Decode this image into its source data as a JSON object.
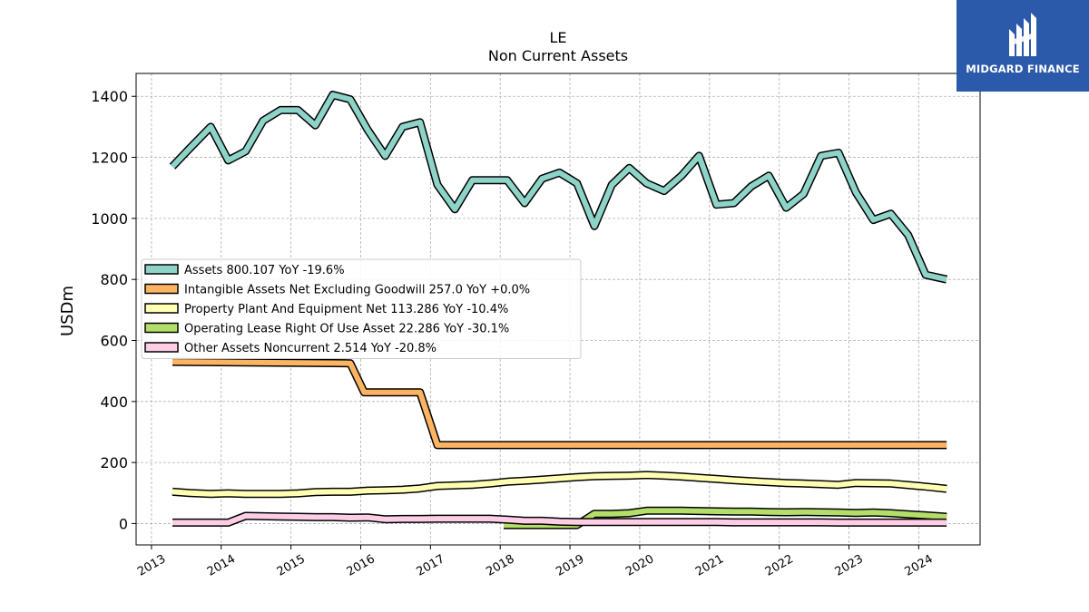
{
  "brand": {
    "name": "MIDGARD FINANCE",
    "bg_color": "#2b5aab"
  },
  "chart_data": {
    "type": "line",
    "title": "LE",
    "subtitle": "Non Current  Assets",
    "ylabel": "USDm",
    "xlabel": "",
    "ylim": [
      -70,
      1475
    ],
    "xlim": [
      2012.78,
      2024.88
    ],
    "yticks": [
      0,
      200,
      400,
      600,
      800,
      1000,
      1200,
      1400
    ],
    "xticks": [
      2013,
      2014,
      2015,
      2016,
      2017,
      2018,
      2019,
      2020,
      2021,
      2022,
      2023,
      2024
    ],
    "grid": true,
    "legend_position": "center-left",
    "series": [
      {
        "name": "Assets",
        "legend_label": "Assets  800.107 YoY -19.6%",
        "color": "#8dd3c7",
        "x": [
          2013.3,
          2013.55,
          2013.85,
          2014.1,
          2014.35,
          2014.6,
          2014.85,
          2015.1,
          2015.35,
          2015.6,
          2015.85,
          2016.1,
          2016.35,
          2016.6,
          2016.85,
          2017.1,
          2017.35,
          2017.6,
          2017.85,
          2018.1,
          2018.35,
          2018.6,
          2018.85,
          2019.1,
          2019.35,
          2019.6,
          2019.85,
          2020.1,
          2020.35,
          2020.6,
          2020.85,
          2021.1,
          2021.35,
          2021.6,
          2021.85,
          2022.1,
          2022.35,
          2022.6,
          2022.85,
          2023.1,
          2023.35,
          2023.6,
          2023.85,
          2024.1,
          2024.4
        ],
        "values": [
          1170,
          1230,
          1300,
          1190,
          1220,
          1320,
          1355,
          1355,
          1305,
          1405,
          1390,
          1290,
          1205,
          1300,
          1315,
          1110,
          1030,
          1125,
          1125,
          1125,
          1050,
          1130,
          1150,
          1115,
          975,
          1110,
          1165,
          1115,
          1090,
          1140,
          1205,
          1045,
          1050,
          1105,
          1140,
          1035,
          1080,
          1205,
          1215,
          1085,
          995,
          1015,
          945,
          815,
          800
        ]
      },
      {
        "name": "Intangible Assets Net Excluding Goodwill",
        "legend_label": "Intangible Assets Net Excluding Goodwill  257.0 YoY +0.0%",
        "color": "#fdb462",
        "x": [
          2013.3,
          2015.85,
          2016.05,
          2016.85,
          2017.1,
          2024.4
        ],
        "values": [
          530,
          525,
          430,
          430,
          257,
          257
        ]
      },
      {
        "name": "Property Plant And Equipment Net",
        "legend_label": "Property Plant And Equipment Net  113.286 YoY -10.4%",
        "color": "#ffffb3",
        "x": [
          2013.3,
          2013.55,
          2013.85,
          2014.1,
          2014.35,
          2014.6,
          2014.85,
          2015.1,
          2015.35,
          2015.6,
          2015.85,
          2016.1,
          2016.35,
          2016.6,
          2016.85,
          2017.1,
          2017.35,
          2017.6,
          2017.85,
          2018.1,
          2018.35,
          2018.6,
          2018.85,
          2019.1,
          2019.35,
          2019.6,
          2019.85,
          2020.1,
          2020.35,
          2020.6,
          2020.85,
          2021.1,
          2021.35,
          2021.6,
          2021.85,
          2022.1,
          2022.35,
          2022.6,
          2022.85,
          2023.1,
          2023.35,
          2023.6,
          2023.85,
          2024.1,
          2024.4
        ],
        "values": [
          104,
          100,
          97,
          99,
          97,
          97,
          97,
          99,
          103,
          104,
          104,
          108,
          109,
          111,
          115,
          123,
          125,
          127,
          131,
          137,
          140,
          144,
          148,
          152,
          155,
          156,
          157,
          159,
          157,
          154,
          150,
          146,
          142,
          139,
          136,
          133,
          131,
          129,
          127,
          133,
          132,
          131,
          126,
          121,
          114
        ]
      },
      {
        "name": "Operating Lease Right Of Use Asset",
        "legend_label": "Operating Lease Right Of Use Asset  22.286 YoY -30.1%",
        "color": "#b3de69",
        "x": [
          2018.05,
          2018.35,
          2018.6,
          2018.85,
          2019.1,
          2019.35,
          2019.6,
          2019.85,
          2020.1,
          2020.35,
          2020.6,
          2020.85,
          2021.1,
          2021.35,
          2021.6,
          2021.85,
          2022.1,
          2022.35,
          2022.6,
          2022.85,
          2023.1,
          2023.35,
          2023.6,
          2023.85,
          2024.1,
          2024.4
        ],
        "values": [
          -5,
          -5,
          -5,
          -5,
          -5,
          32,
          32,
          34,
          42,
          42,
          42,
          41,
          40,
          39,
          39,
          38,
          37,
          38,
          37,
          36,
          35,
          36,
          34,
          30,
          27,
          22
        ]
      },
      {
        "name": "Other Assets Noncurrent",
        "legend_label": "Other Assets Noncurrent  2.514 YoY -20.8%",
        "color": "#fccde5",
        "x": [
          2013.3,
          2014.1,
          2014.35,
          2014.6,
          2014.85,
          2015.1,
          2015.35,
          2015.6,
          2015.85,
          2016.1,
          2016.35,
          2016.6,
          2016.85,
          2017.1,
          2017.35,
          2017.6,
          2017.85,
          2018.1,
          2018.35,
          2018.6,
          2018.85,
          2019.1,
          2019.35,
          2019.6,
          2019.85,
          2020.1,
          2020.35,
          2020.6,
          2020.85,
          2021.1,
          2021.35,
          2021.6,
          2021.85,
          2022.1,
          2022.35,
          2022.6,
          2022.85,
          2023.1,
          2023.35,
          2023.6,
          2023.85,
          2024.1,
          2024.4
        ],
        "values": [
          3,
          3,
          25,
          24,
          23,
          22,
          21,
          21,
          19,
          20,
          14,
          15,
          15,
          16,
          16,
          16,
          16,
          13,
          9,
          9,
          6,
          5,
          5,
          5,
          5,
          5,
          5,
          5,
          5,
          5,
          4,
          4,
          4,
          4,
          4,
          4,
          3,
          3,
          3,
          3,
          3,
          3,
          3
        ]
      }
    ]
  }
}
